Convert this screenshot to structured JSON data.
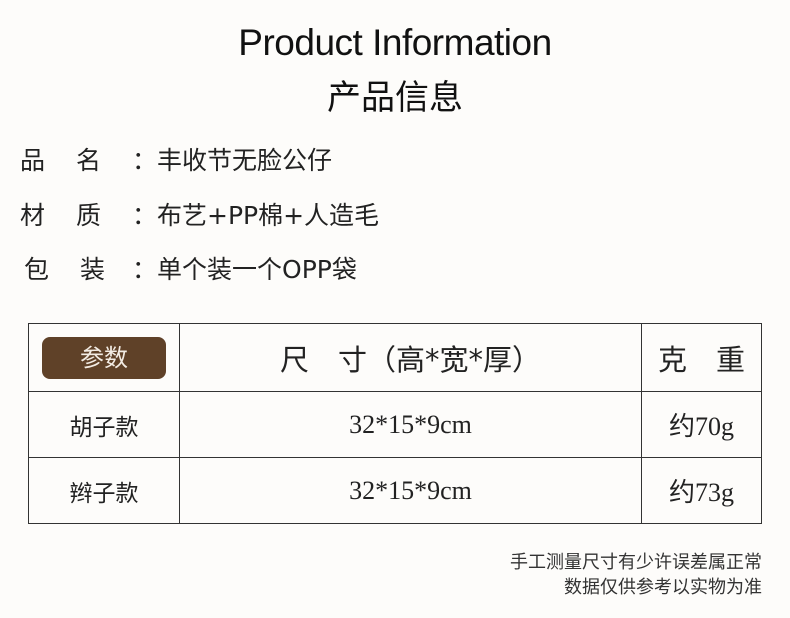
{
  "header": {
    "title": "Product Information",
    "subtitle": "产品信息"
  },
  "info": [
    {
      "label": [
        "品",
        "名"
      ],
      "value": "丰收节无脸公仔"
    },
    {
      "label": [
        "材",
        "质"
      ],
      "value": "布艺+PP棉+人造毛"
    },
    {
      "label": [
        "包",
        "装"
      ],
      "value": "单个装一个OPP袋"
    }
  ],
  "table": {
    "headers": [
      "参数",
      "尺　寸（高*宽*厚）",
      "克　重"
    ],
    "rows": [
      [
        "胡子款",
        "32*15*9cm",
        "约70g"
      ],
      [
        "辫子款",
        "32*15*9cm",
        "约73g"
      ]
    ]
  },
  "notes": [
    "手工测量尺寸有少许误差属正常",
    "数据仅供参考以实物为准"
  ],
  "colors": {
    "badge": "#5f4128",
    "background": "#fdfcfa"
  }
}
